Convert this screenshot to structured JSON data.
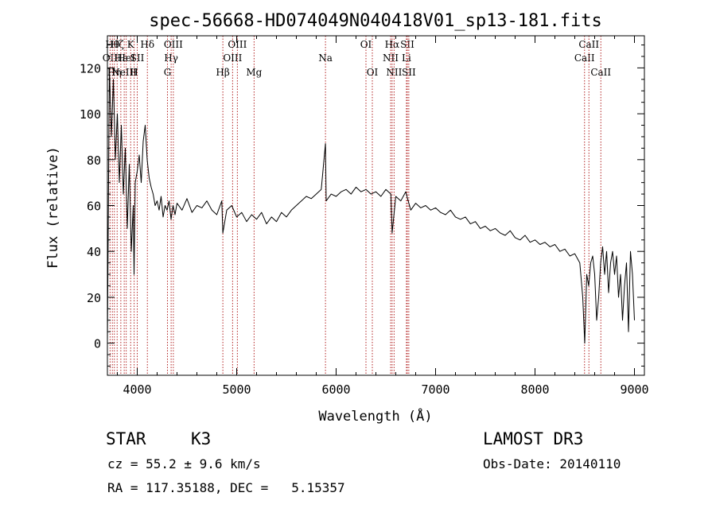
{
  "chart_data": {
    "type": "line",
    "title": "spec-56668-HD074049N040418V01_sp13-181.fits",
    "xlabel": "Wavelength (Å)",
    "ylabel": "Flux (relative)",
    "xlim": [
      3700,
      9100
    ],
    "ylim": [
      -14,
      134
    ],
    "xticks": [
      4000,
      5000,
      6000,
      7000,
      8000,
      9000
    ],
    "yticks": [
      0,
      20,
      40,
      60,
      80,
      100,
      120
    ],
    "grid": false,
    "legend": "none",
    "series": [
      {
        "color": "#000000",
        "x": [
          3700,
          3720,
          3740,
          3760,
          3780,
          3800,
          3820,
          3840,
          3860,
          3880,
          3900,
          3920,
          3940,
          3960,
          3968,
          3980,
          4000,
          4020,
          4040,
          4060,
          4080,
          4100,
          4120,
          4140,
          4160,
          4180,
          4200,
          4220,
          4240,
          4260,
          4280,
          4300,
          4320,
          4340,
          4360,
          4380,
          4400,
          4450,
          4500,
          4550,
          4600,
          4650,
          4700,
          4750,
          4800,
          4850,
          4861,
          4900,
          4950,
          5000,
          5050,
          5100,
          5150,
          5200,
          5250,
          5300,
          5350,
          5400,
          5450,
          5500,
          5550,
          5600,
          5650,
          5700,
          5750,
          5800,
          5850,
          5893,
          5900,
          5950,
          6000,
          6050,
          6100,
          6150,
          6200,
          6250,
          6300,
          6350,
          6400,
          6450,
          6500,
          6550,
          6563,
          6600,
          6650,
          6700,
          6750,
          6800,
          6850,
          6900,
          6950,
          7000,
          7050,
          7100,
          7150,
          7200,
          7250,
          7300,
          7350,
          7400,
          7450,
          7500,
          7550,
          7600,
          7650,
          7700,
          7750,
          7800,
          7850,
          7900,
          7950,
          8000,
          8050,
          8100,
          8150,
          8200,
          8250,
          8300,
          8350,
          8400,
          8450,
          8480,
          8500,
          8520,
          8540,
          8560,
          8580,
          8600,
          8620,
          8640,
          8660,
          8680,
          8700,
          8720,
          8740,
          8760,
          8780,
          8800,
          8820,
          8840,
          8860,
          8880,
          8900,
          8920,
          8940,
          8960,
          8980,
          9000
        ],
        "values": [
          0,
          120,
          90,
          115,
          80,
          100,
          70,
          95,
          65,
          85,
          50,
          78,
          40,
          60,
          30,
          70,
          75,
          82,
          70,
          88,
          95,
          80,
          72,
          68,
          65,
          60,
          62,
          58,
          64,
          55,
          60,
          58,
          62,
          54,
          60,
          56,
          61,
          58,
          63,
          57,
          60,
          59,
          62,
          58,
          56,
          62,
          48,
          58,
          60,
          55,
          57,
          53,
          56,
          54,
          57,
          52,
          55,
          53,
          57,
          55,
          58,
          60,
          62,
          64,
          63,
          65,
          67,
          87,
          62,
          65,
          64,
          66,
          67,
          65,
          68,
          66,
          67,
          65,
          66,
          64,
          67,
          65,
          48,
          64,
          62,
          66,
          58,
          61,
          59,
          60,
          58,
          59,
          57,
          56,
          58,
          55,
          54,
          55,
          52,
          53,
          50,
          51,
          49,
          50,
          48,
          47,
          49,
          46,
          45,
          47,
          44,
          45,
          43,
          44,
          42,
          43,
          40,
          41,
          38,
          39,
          35,
          20,
          0,
          30,
          25,
          35,
          38,
          30,
          10,
          20,
          35,
          42,
          30,
          40,
          22,
          35,
          40,
          30,
          38,
          20,
          30,
          10,
          25,
          35,
          5,
          40,
          30,
          10
        ]
      }
    ],
    "line_markers": [
      {
        "wl": 3727,
        "label": "OII",
        "row": 1
      },
      {
        "wl": 3750,
        "label": "Hθ",
        "row": 0
      },
      {
        "wl": 3770,
        "label": "Hη",
        "row": 2
      },
      {
        "wl": 3798,
        "label": "Hζ",
        "row": 0
      },
      {
        "wl": 3835,
        "label": "Hε",
        "row": 1
      },
      {
        "wl": 3869,
        "label": "NeIII",
        "row": 2
      },
      {
        "wl": 3889,
        "label": "HeI",
        "row": 1
      },
      {
        "wl": 3934,
        "label": "K",
        "row": 0
      },
      {
        "wl": 3969,
        "label": "H",
        "row": 2
      },
      {
        "wl": 4000,
        "label": "SII",
        "row": 1
      },
      {
        "wl": 4102,
        "label": "Hδ",
        "row": 0
      },
      {
        "wl": 4304,
        "label": "G",
        "row": 2
      },
      {
        "wl": 4341,
        "label": "Hγ",
        "row": 1
      },
      {
        "wl": 4363,
        "label": "OIII",
        "row": 0
      },
      {
        "wl": 4861,
        "label": "Hβ",
        "row": 2
      },
      {
        "wl": 4959,
        "label": "OIII",
        "row": 1
      },
      {
        "wl": 5007,
        "label": "OIII",
        "row": 0
      },
      {
        "wl": 5175,
        "label": "Mg",
        "row": 2
      },
      {
        "wl": 5893,
        "label": "Na",
        "row": 1
      },
      {
        "wl": 6300,
        "label": "OI",
        "row": 0
      },
      {
        "wl": 6364,
        "label": "OI",
        "row": 2
      },
      {
        "wl": 6548,
        "label": "NII",
        "row": 1
      },
      {
        "wl": 6563,
        "label": "Hα",
        "row": 0
      },
      {
        "wl": 6583,
        "label": "NII",
        "row": 2
      },
      {
        "wl": 6707,
        "label": "Li",
        "row": 1
      },
      {
        "wl": 6716,
        "label": "SII",
        "row": 0
      },
      {
        "wl": 6731,
        "label": "SII",
        "row": 2
      },
      {
        "wl": 8498,
        "label": "CaII",
        "row": 1
      },
      {
        "wl": 8542,
        "label": "CaII",
        "row": 0
      },
      {
        "wl": 8662,
        "label": "CaII",
        "row": 2
      }
    ]
  },
  "info": {
    "class_label": "STAR",
    "subclass": "K3",
    "survey": "LAMOST DR3",
    "cz": "cz = 55.2 ± 9.6 km/s",
    "obs_date": "Obs-Date: 20140110",
    "coords": "RA = 117.35188, DEC =   5.15357"
  },
  "colors": {
    "spectrum": "#000000",
    "marker_lines": "#b22222",
    "axes": "#000000"
  }
}
